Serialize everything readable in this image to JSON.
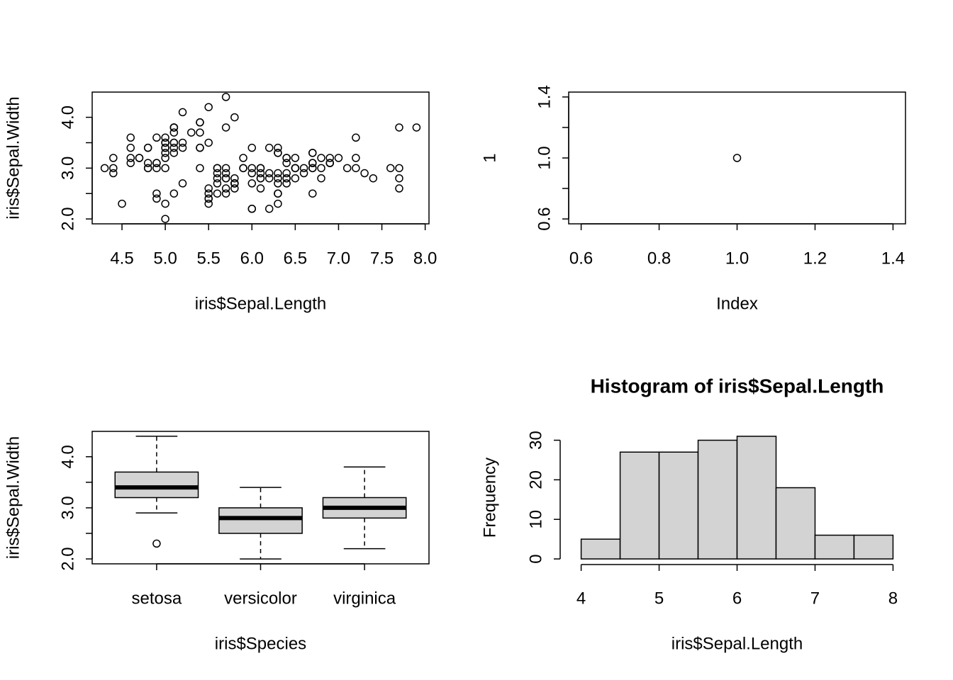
{
  "chart_data": [
    {
      "type": "scatter",
      "xlabel": "iris$Sepal.Length",
      "ylabel": "iris$Sepal.Width",
      "color": "#000000",
      "x": [
        5.1,
        4.9,
        4.7,
        4.6,
        5.0,
        5.4,
        4.6,
        5.0,
        4.4,
        4.9,
        5.4,
        4.8,
        4.8,
        4.3,
        5.8,
        5.7,
        5.4,
        5.1,
        5.7,
        5.1,
        5.4,
        5.1,
        4.6,
        5.1,
        4.8,
        5.0,
        5.0,
        5.2,
        5.2,
        4.7,
        4.8,
        5.4,
        5.2,
        5.5,
        4.9,
        5.0,
        5.5,
        4.9,
        4.4,
        5.1,
        5.0,
        4.5,
        4.4,
        5.0,
        5.1,
        4.8,
        5.1,
        4.6,
        5.3,
        5.0,
        7.0,
        6.4,
        6.9,
        5.5,
        6.5,
        5.7,
        6.3,
        4.9,
        6.6,
        5.2,
        5.0,
        5.9,
        6.0,
        6.1,
        5.6,
        6.7,
        5.6,
        5.8,
        6.2,
        5.6,
        5.9,
        6.1,
        6.3,
        6.1,
        6.4,
        6.6,
        6.8,
        6.7,
        6.0,
        5.7,
        5.5,
        5.5,
        5.8,
        6.0,
        5.4,
        6.0,
        6.7,
        6.3,
        5.6,
        5.5,
        5.5,
        6.1,
        5.8,
        5.0,
        5.6,
        5.7,
        5.7,
        6.2,
        5.1,
        5.7,
        6.3,
        5.8,
        7.1,
        6.3,
        6.5,
        7.6,
        4.9,
        7.3,
        6.7,
        7.2,
        6.5,
        6.4,
        6.8,
        5.7,
        5.8,
        6.4,
        6.5,
        7.7,
        7.7,
        6.0,
        6.9,
        5.6,
        7.7,
        6.3,
        6.7,
        7.2,
        6.2,
        6.1,
        6.4,
        7.2,
        7.4,
        7.9,
        6.4,
        6.3,
        6.1,
        7.7,
        6.3,
        6.4,
        6.0,
        6.9,
        6.7,
        6.9,
        5.8,
        6.8,
        6.7,
        6.7,
        6.3,
        6.5,
        6.2,
        5.9
      ],
      "y": [
        3.5,
        3.0,
        3.2,
        3.1,
        3.6,
        3.9,
        3.4,
        3.4,
        2.9,
        3.1,
        3.7,
        3.4,
        3.0,
        3.0,
        4.0,
        4.4,
        3.9,
        3.5,
        3.8,
        3.8,
        3.4,
        3.7,
        3.6,
        3.3,
        3.4,
        3.0,
        3.4,
        3.5,
        3.4,
        3.2,
        3.1,
        3.4,
        4.1,
        4.2,
        3.1,
        3.2,
        3.5,
        3.6,
        3.0,
        3.4,
        3.5,
        2.3,
        3.2,
        3.5,
        3.8,
        3.0,
        3.8,
        3.2,
        3.7,
        3.3,
        3.2,
        3.2,
        3.1,
        2.3,
        2.8,
        2.8,
        3.3,
        2.4,
        2.9,
        2.7,
        2.0,
        3.0,
        2.2,
        2.9,
        2.9,
        3.1,
        3.0,
        2.7,
        2.2,
        2.5,
        3.2,
        2.8,
        2.5,
        2.8,
        2.9,
        3.0,
        2.8,
        3.0,
        2.9,
        2.6,
        2.4,
        2.4,
        2.7,
        2.7,
        3.0,
        3.4,
        3.1,
        2.3,
        3.0,
        2.5,
        2.6,
        3.0,
        2.6,
        2.3,
        2.7,
        3.0,
        2.9,
        2.9,
        2.5,
        2.8,
        3.3,
        2.7,
        3.0,
        2.9,
        3.0,
        3.0,
        2.5,
        2.9,
        2.5,
        3.6,
        3.2,
        2.7,
        3.0,
        2.5,
        2.8,
        3.2,
        3.0,
        3.8,
        2.6,
        2.2,
        3.2,
        2.8,
        2.8,
        2.7,
        3.3,
        3.2,
        2.8,
        3.0,
        2.8,
        3.0,
        2.8,
        3.8,
        2.8,
        2.8,
        2.6,
        3.0,
        3.4,
        3.1,
        3.0,
        3.1,
        3.1,
        3.1,
        2.7,
        3.2,
        3.3,
        3.0,
        2.5,
        3.0,
        3.4,
        3.0
      ],
      "xlim": [
        4.156,
        8.044
      ],
      "ylim": [
        1.904,
        4.496
      ],
      "xticks": [
        4.5,
        {
          "value": 5,
          "label": "5.0"
        },
        5.5,
        {
          "value": 6,
          "label": "6.0"
        },
        6.5,
        {
          "value": 7,
          "label": "7.0"
        },
        7.5,
        {
          "value": 8,
          "label": "8.0"
        }
      ],
      "yticks": [
        {
          "value": 2,
          "label": "2.0"
        },
        {
          "value": 2.5,
          "label": null
        },
        {
          "value": 3,
          "label": "3.0"
        },
        {
          "value": 3.5,
          "label": null
        },
        {
          "value": 4,
          "label": "4.0"
        }
      ]
    },
    {
      "type": "scatter",
      "xlabel": "Index",
      "ylabel": "1",
      "color": "#000000",
      "x": [
        1
      ],
      "y": [
        1
      ],
      "xlim": [
        0.568,
        1.432
      ],
      "ylim": [
        0.568,
        1.432
      ],
      "xticks": [
        0.6,
        0.8,
        {
          "value": 1,
          "label": "1.0"
        },
        1.2,
        1.4
      ],
      "yticks": [
        0.6,
        {
          "value": 0.8,
          "label": null
        },
        {
          "value": 1,
          "label": "1.0"
        },
        {
          "value": 1.2,
          "label": null
        },
        1.4
      ]
    },
    {
      "type": "box",
      "xlabel": "iris$Species",
      "ylabel": "iris$Sepal.Width",
      "color": "#d3d3d3",
      "categories": [
        "setosa",
        "versicolor",
        "virginica"
      ],
      "boxes": [
        {
          "low": 2.9,
          "q1": 3.2,
          "median": 3.4,
          "q3": 3.7,
          "high": 4.4,
          "outliers": [
            2.3
          ]
        },
        {
          "low": 2.0,
          "q1": 2.5,
          "median": 2.8,
          "q3": 3.0,
          "high": 3.4,
          "outliers": []
        },
        {
          "low": 2.2,
          "q1": 2.8,
          "median": 3.0,
          "q3": 3.2,
          "high": 3.8,
          "outliers": []
        }
      ],
      "xlim": [
        0.38,
        3.62
      ],
      "ylim": [
        1.904,
        4.496
      ],
      "yticks": [
        {
          "value": 2,
          "label": "2.0"
        },
        {
          "value": 2.5,
          "label": null
        },
        {
          "value": 3,
          "label": "3.0"
        },
        {
          "value": 3.5,
          "label": null
        },
        {
          "value": 4,
          "label": "4.0"
        }
      ]
    },
    {
      "type": "histogram",
      "title": "Histogram of iris$Sepal.Length",
      "xlabel": "iris$Sepal.Length",
      "ylabel": "Frequency",
      "color": "#d3d3d3",
      "bins": [
        4,
        4.5,
        5,
        5.5,
        6,
        6.5,
        7,
        7.5,
        8
      ],
      "counts": [
        5,
        27,
        27,
        30,
        31,
        18,
        6,
        6
      ],
      "xlim": [
        3.84,
        8.16
      ],
      "ylim": [
        -1.24,
        32.24
      ],
      "xticks": [
        4,
        5,
        6,
        7,
        8
      ],
      "yticks": [
        0,
        10,
        20,
        30
      ]
    }
  ]
}
